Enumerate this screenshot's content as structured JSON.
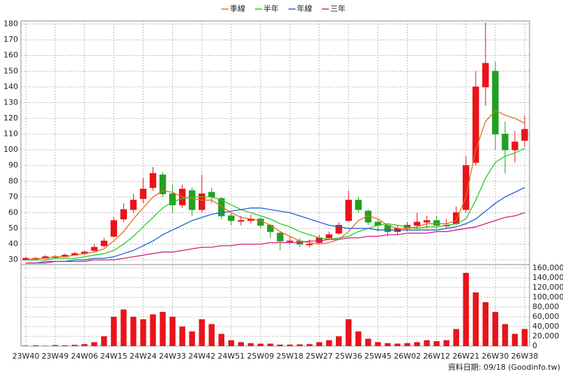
{
  "footer": "資料日期: 09/18 (Goodinfo.tw)",
  "chart_data": [
    {
      "type": "candlestick",
      "categories": [
        "23W40",
        null,
        null,
        "23W49",
        null,
        null,
        "24W06",
        null,
        null,
        "24W15",
        null,
        null,
        "24W24",
        null,
        null,
        "24W33",
        null,
        null,
        "24W42",
        null,
        null,
        "24W51",
        null,
        null,
        "25W09",
        null,
        null,
        "25W18",
        null,
        null,
        "25W27",
        null,
        null,
        "25W36",
        null,
        null,
        "25W45",
        null,
        null,
        "26W02",
        null,
        null,
        "26W12",
        null,
        null,
        "26W21",
        null,
        null,
        "26W30",
        null,
        null,
        "26W38"
      ],
      "open": [
        30,
        31,
        31,
        32,
        32,
        33,
        34,
        36,
        39,
        45,
        56,
        62,
        69,
        76,
        84,
        72,
        65,
        74,
        62,
        73,
        69,
        58,
        55,
        55,
        56,
        52,
        47,
        42,
        42,
        40,
        41,
        44,
        47,
        55,
        68,
        61,
        54,
        52,
        48,
        50,
        52,
        54,
        55,
        52,
        53,
        62,
        92,
        140,
        150,
        110,
        100,
        106
      ],
      "high": [
        32,
        32,
        33,
        33,
        34,
        35,
        36,
        40,
        44,
        57,
        66,
        72,
        82,
        89,
        86,
        78,
        78,
        76,
        84,
        76,
        70,
        60,
        58,
        59,
        57,
        53,
        48,
        45,
        44,
        43,
        46,
        48,
        54,
        74,
        70,
        62,
        56,
        53,
        52,
        54,
        60,
        58,
        58,
        56,
        64,
        96,
        150,
        181,
        156,
        118,
        112,
        122
      ],
      "low": [
        30,
        30,
        31,
        31,
        32,
        33,
        33,
        35,
        38,
        44,
        54,
        60,
        66,
        74,
        70,
        60,
        63,
        58,
        60,
        66,
        56,
        52,
        52,
        53,
        50,
        44,
        36,
        40,
        38,
        38,
        40,
        43,
        46,
        54,
        60,
        52,
        48,
        45,
        46,
        48,
        50,
        50,
        50,
        50,
        52,
        60,
        90,
        128,
        100,
        85,
        92,
        102
      ],
      "close": [
        31,
        31,
        32,
        32,
        33,
        34,
        35,
        38,
        42,
        55,
        62,
        68,
        75,
        85,
        72,
        65,
        75,
        62,
        72,
        70,
        58,
        55,
        55,
        56,
        52,
        48,
        42,
        42,
        40,
        40,
        44,
        46,
        52,
        68,
        62,
        54,
        52,
        48,
        50,
        52,
        54,
        55,
        52,
        52,
        60,
        90,
        140,
        155,
        110,
        100,
        105,
        113
      ],
      "up_color": "#e8141a",
      "down_color": "#22a022",
      "series": [
        {
          "name": "季線",
          "color": "#e07020",
          "values": [
            30,
            31,
            31,
            32,
            32,
            33,
            34,
            35,
            37,
            42,
            48,
            56,
            63,
            70,
            74,
            73,
            70,
            69,
            68,
            68,
            64,
            60,
            57,
            56,
            55,
            52,
            48,
            45,
            42,
            41,
            40,
            41,
            43,
            48,
            55,
            58,
            56,
            52,
            50,
            50,
            51,
            53,
            53,
            53,
            55,
            70,
            100,
            118,
            125,
            122,
            120,
            117
          ]
        },
        {
          "name": "半年",
          "color": "#22cc22",
          "values": [
            30,
            30,
            30,
            31,
            31,
            31,
            32,
            33,
            34,
            36,
            40,
            45,
            51,
            57,
            63,
            67,
            69,
            70,
            70,
            70,
            68,
            65,
            62,
            60,
            58,
            56,
            53,
            51,
            48,
            46,
            44,
            43,
            44,
            45,
            48,
            50,
            52,
            53,
            52,
            51,
            50,
            51,
            51,
            52,
            53,
            56,
            68,
            82,
            92,
            96,
            98,
            101
          ]
        },
        {
          "name": "年線",
          "color": "#2060d0",
          "values": [
            28,
            28,
            29,
            29,
            29,
            30,
            30,
            31,
            31,
            32,
            34,
            36,
            39,
            42,
            46,
            49,
            52,
            55,
            57,
            59,
            60,
            61,
            62,
            63,
            63,
            62,
            61,
            60,
            58,
            56,
            54,
            52,
            51,
            50,
            50,
            50,
            49,
            49,
            49,
            49,
            49,
            49,
            49,
            50,
            51,
            53,
            56,
            61,
            66,
            70,
            73,
            76
          ]
        },
        {
          "name": "三年",
          "color": "#d02080",
          "values": [
            28,
            28,
            28,
            29,
            29,
            29,
            29,
            30,
            30,
            30,
            31,
            32,
            33,
            34,
            35,
            35,
            36,
            37,
            38,
            38,
            39,
            39,
            40,
            40,
            40,
            41,
            41,
            41,
            41,
            42,
            42,
            43,
            43,
            44,
            44,
            45,
            45,
            46,
            46,
            47,
            47,
            47,
            48,
            48,
            49,
            50,
            51,
            53,
            55,
            57,
            58,
            60
          ]
        }
      ],
      "ylim": [
        27,
        182
      ],
      "yticks": [
        30,
        40,
        50,
        60,
        70,
        80,
        90,
        100,
        110,
        120,
        130,
        140,
        150,
        160,
        170,
        180
      ],
      "grid": true
    },
    {
      "type": "bar",
      "color": "#e8141a",
      "values": [
        1000,
        1500,
        800,
        2000,
        1500,
        2500,
        4000,
        8000,
        20000,
        60000,
        75000,
        60000,
        55000,
        65000,
        70000,
        60000,
        40000,
        30000,
        55000,
        45000,
        25000,
        12000,
        8000,
        6000,
        5000,
        5000,
        3000,
        3000,
        3500,
        4000,
        8000,
        12000,
        20000,
        55000,
        30000,
        15000,
        8000,
        6000,
        5000,
        6000,
        8000,
        12000,
        10000,
        12000,
        35000,
        150000,
        110000,
        90000,
        70000,
        45000,
        25000,
        35000
      ],
      "ylim": [
        0,
        167000
      ],
      "yticks": [
        0,
        {
          "value": 20000,
          "label": "20,000"
        },
        {
          "value": 40000,
          "label": "40,000"
        },
        {
          "value": 60000,
          "label": "60,000"
        },
        {
          "value": 80000,
          "label": "80,000"
        },
        {
          "value": 100000,
          "label": "100,000"
        },
        {
          "value": 120000,
          "label": "120,000"
        },
        {
          "value": 140000,
          "label": "140,000"
        },
        {
          "value": 160000,
          "label": "160,000"
        }
      ],
      "grid": true
    }
  ]
}
